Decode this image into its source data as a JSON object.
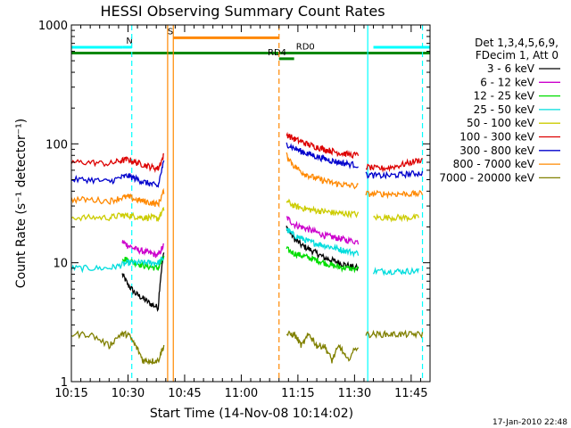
{
  "chart_data": {
    "type": "line",
    "title": "HESSI Observing Summary Count Rates",
    "xlabel": "Start Time (14-Nov-08 10:14:02)",
    "ylabel": "Count Rate (s⁻¹ detector⁻¹)",
    "yscale": "log",
    "ylim": [
      1,
      1000
    ],
    "xlim": [
      15,
      110
    ],
    "x_unit": "minutes after 10:00",
    "x_ticks": [
      {
        "x": 15,
        "label": "10:15"
      },
      {
        "x": 30,
        "label": "10:30"
      },
      {
        "x": 45,
        "label": "10:45"
      },
      {
        "x": 60,
        "label": "11:00"
      },
      {
        "x": 75,
        "label": "11:15"
      },
      {
        "x": 90,
        "label": "11:30"
      },
      {
        "x": 105,
        "label": "11:45"
      }
    ],
    "y_ticks": [
      {
        "y": 1,
        "label": "1"
      },
      {
        "y": 10,
        "label": "10"
      },
      {
        "y": 100,
        "label": "100"
      },
      {
        "y": 1000,
        "label": "1000"
      }
    ],
    "legend_header": [
      "Det 1,3,4,5,6,9,",
      "FDecim 1, Att 0"
    ],
    "legend_position": "right",
    "footer": "17-Jan-2010 22:48",
    "series": [
      {
        "name": "3 - 6 keV",
        "color": "#000000",
        "segments": [
          {
            "x": [
              28.5,
              30,
              32,
              34,
              36,
              38,
              39.5
            ],
            "y": [
              8,
              6.5,
              5.5,
              5,
              4.5,
              4.2,
              12
            ]
          },
          {
            "x": [
              72,
              74,
              76,
              78,
              80,
              82,
              84,
              86,
              88,
              91
            ],
            "y": [
              20,
              16,
              14,
              13,
              12,
              11,
              10.5,
              10,
              9.5,
              9
            ]
          }
        ]
      },
      {
        "name": "6 - 12 keV",
        "color": "#cc00cc",
        "segments": [
          {
            "x": [
              28.5,
              30,
              32,
              34,
              36,
              38,
              39.5
            ],
            "y": [
              15,
              14,
              13,
              12.5,
              12,
              11.5,
              14
            ]
          },
          {
            "x": [
              72,
              74,
              76,
              78,
              80,
              82,
              84,
              86,
              88,
              91
            ],
            "y": [
              24,
              21,
              20,
              19,
              18,
              17,
              16.5,
              16,
              15.5,
              15
            ]
          }
        ]
      },
      {
        "name": "12 - 25 keV",
        "color": "#00dd00",
        "segments": [
          {
            "x": [
              28.5,
              30,
              32,
              34,
              36,
              38,
              39.5
            ],
            "y": [
              11,
              10.5,
              10,
              9.5,
              9.2,
              9,
              11
            ]
          },
          {
            "x": [
              72,
              74,
              76,
              78,
              80,
              82,
              84,
              86,
              88,
              91
            ],
            "y": [
              13,
              12,
              11.5,
              11,
              10.5,
              10,
              9.5,
              9.2,
              9,
              8.8
            ]
          }
        ]
      },
      {
        "name": "25 - 50 keV",
        "color": "#00dddd",
        "segments": [
          {
            "x": [
              15,
              20,
              25,
              28,
              30,
              32,
              34,
              36,
              38,
              39.5
            ],
            "y": [
              9,
              9,
              9,
              9.5,
              10,
              10,
              10,
              10,
              10,
              11
            ]
          },
          {
            "x": [
              72,
              74,
              76,
              78,
              80,
              82,
              84,
              86,
              88,
              91
            ],
            "y": [
              19,
              17,
              16,
              15,
              14.5,
              14,
              13.5,
              13,
              12.5,
              12
            ]
          },
          {
            "x": [
              95,
              98,
              101,
              104,
              107
            ],
            "y": [
              8.5,
              8.5,
              8.5,
              8.5,
              8.5
            ]
          }
        ]
      },
      {
        "name": "50 - 100 keV",
        "color": "#cccc00",
        "segments": [
          {
            "x": [
              15,
              20,
              25,
              28,
              30,
              32,
              34,
              36,
              38,
              39.5
            ],
            "y": [
              24,
              24,
              24,
              25,
              25,
              24.5,
              24,
              24,
              23.5,
              28
            ]
          },
          {
            "x": [
              72,
              74,
              76,
              78,
              80,
              82,
              84,
              86,
              88,
              91
            ],
            "y": [
              33,
              30,
              29,
              28,
              27.5,
              27,
              26.5,
              26,
              26,
              25.5
            ]
          },
          {
            "x": [
              95,
              98,
              101,
              104,
              107
            ],
            "y": [
              24,
              24,
              24,
              24,
              24
            ]
          }
        ]
      },
      {
        "name": "100 - 300 keV",
        "color": "#dd0000",
        "segments": [
          {
            "x": [
              15,
              20,
              25,
              28,
              30,
              32,
              34,
              36,
              38,
              39.5
            ],
            "y": [
              70,
              70,
              68,
              72,
              74,
              70,
              67,
              64,
              62,
              80
            ]
          },
          {
            "x": [
              72,
              74,
              76,
              78,
              80,
              82,
              84,
              86,
              88,
              91
            ],
            "y": [
              120,
              110,
              104,
              98,
              94,
              90,
              87,
              84,
              82,
              80
            ]
          },
          {
            "x": [
              93,
              96,
              99,
              102,
              105,
              108
            ],
            "y": [
              64,
              62,
              63,
              66,
              70,
              74
            ]
          }
        ]
      },
      {
        "name": "300 - 800 keV",
        "color": "#0000cc",
        "segments": [
          {
            "x": [
              15,
              20,
              25,
              28,
              30,
              32,
              34,
              36,
              38,
              39.5
            ],
            "y": [
              50,
              50,
              48,
              52,
              54,
              51,
              48,
              46,
              44,
              70
            ]
          },
          {
            "x": [
              72,
              74,
              76,
              78,
              80,
              82,
              84,
              86,
              88,
              91
            ],
            "y": [
              100,
              92,
              86,
              82,
              78,
              75,
              72,
              70,
              68,
              66
            ]
          },
          {
            "x": [
              93,
              96,
              99,
              102,
              105,
              108
            ],
            "y": [
              55,
              54,
              54,
              55,
              56,
              57
            ]
          }
        ]
      },
      {
        "name": "800 - 7000 keV",
        "color": "#ff8800",
        "segments": [
          {
            "x": [
              15,
              20,
              25,
              28,
              30,
              32,
              34,
              36,
              38,
              39.5
            ],
            "y": [
              34,
              34,
              33,
              35,
              36,
              34,
              33,
              32,
              31,
              40
            ]
          },
          {
            "x": [
              72,
              74,
              76,
              78,
              80,
              82,
              84,
              86,
              88,
              91
            ],
            "y": [
              80,
              65,
              58,
              54,
              51,
              49,
              47,
              46,
              45,
              44
            ]
          },
          {
            "x": [
              93,
              96,
              99,
              102,
              105,
              108
            ],
            "y": [
              38,
              38,
              38,
              38,
              38,
              38
            ]
          }
        ]
      },
      {
        "name": "7000 - 20000 keV",
        "color": "#808000",
        "segments": [
          {
            "x": [
              15,
              20,
              25,
              28,
              30,
              32,
              34,
              36,
              38,
              39.5
            ],
            "y": [
              2.5,
              2.5,
              2,
              2.5,
              2.5,
              2,
              1.5,
              1.5,
              1.5,
              2
            ]
          },
          {
            "x": [
              72,
              74,
              76,
              78,
              80,
              82,
              84,
              86,
              88,
              91
            ],
            "y": [
              2.5,
              2.5,
              2,
              2.5,
              2,
              2,
              1.5,
              2,
              1.5,
              2
            ]
          },
          {
            "x": [
              93,
              96,
              99,
              102,
              105,
              108
            ],
            "y": [
              2.5,
              2.5,
              2.5,
              2.5,
              2.5,
              2.5
            ]
          }
        ]
      }
    ],
    "overlay_bars": [
      {
        "label": "N",
        "color": "#00ffff",
        "y": 650,
        "segments": [
          [
            15,
            28.5
          ],
          [
            28.5,
            31
          ]
        ],
        "label_x": 29.5
      },
      {
        "label": "N",
        "color": "#00ffff",
        "y": 650,
        "segments": [
          [
            95,
            110
          ]
        ],
        "label_x": null
      },
      {
        "label": "S",
        "color": "#ff8800",
        "y": 780,
        "segments": [
          [
            42,
            70
          ]
        ],
        "label_x": 40.5
      },
      {
        "label": "RD0",
        "color": "#008800",
        "y": 580,
        "segments": [
          [
            15,
            110
          ]
        ],
        "label_x": 74.5
      },
      {
        "label": "RD4",
        "color": "#008800",
        "y": 520,
        "segments": [
          [
            70,
            74
          ]
        ],
        "label_x": 67
      }
    ],
    "vertical_lines": [
      {
        "x": 31,
        "color": "#00ffff",
        "style": "dashed"
      },
      {
        "x": 40.5,
        "color": "#ff8800",
        "style": "solid"
      },
      {
        "x": 42,
        "color": "#ff8800",
        "style": "solid"
      },
      {
        "x": 70,
        "color": "#ff8800",
        "style": "dashed"
      },
      {
        "x": 93.5,
        "color": "#00ffff",
        "style": "solid"
      },
      {
        "x": 108,
        "color": "#00ffff",
        "style": "dashed"
      }
    ],
    "grid": false
  }
}
